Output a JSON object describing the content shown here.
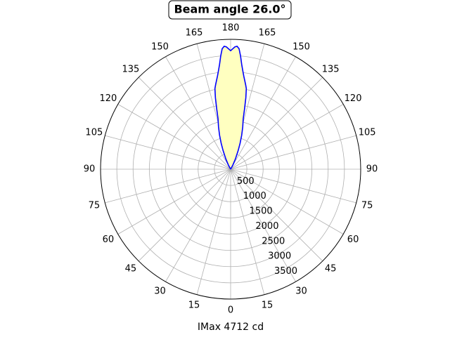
{
  "chart_data": {
    "type": "polar",
    "title": "Beam angle 26.0°",
    "xlabel": "IMax 4712 cd",
    "theta": [
      -30,
      -28,
      -25,
      -22,
      -20,
      -18,
      -16,
      -14,
      -13,
      -12,
      -11,
      -10,
      -8,
      -7,
      -6,
      -5,
      -4,
      -3,
      -2,
      0,
      2,
      3,
      4,
      5,
      6,
      7,
      8,
      10,
      11,
      12,
      13,
      14,
      16,
      18,
      20,
      22,
      25,
      28,
      30
    ],
    "series": [
      {
        "color": "#0000ff",
        "fill": "#ffffc0",
        "values": [
          0,
          150,
          350,
          620,
          850,
          1100,
          1350,
          1600,
          1900,
          2250,
          2530,
          2650,
          2900,
          3060,
          3250,
          3500,
          3720,
          3790,
          3770,
          3650,
          3770,
          3790,
          3720,
          3500,
          3250,
          3060,
          2900,
          2650,
          2530,
          2250,
          1900,
          1600,
          1350,
          1100,
          850,
          620,
          350,
          150,
          0
        ]
      }
    ],
    "rlim": [
      0,
      4000
    ],
    "rticks": [
      500,
      1000,
      1500,
      2000,
      2500,
      3000,
      3500
    ],
    "thetaticks": [
      180,
      165,
      150,
      135,
      120,
      105,
      90,
      75,
      60,
      45,
      30,
      15,
      0,
      15,
      30,
      45,
      60,
      75,
      90,
      105,
      120,
      135,
      150,
      165
    ],
    "grid": true
  }
}
